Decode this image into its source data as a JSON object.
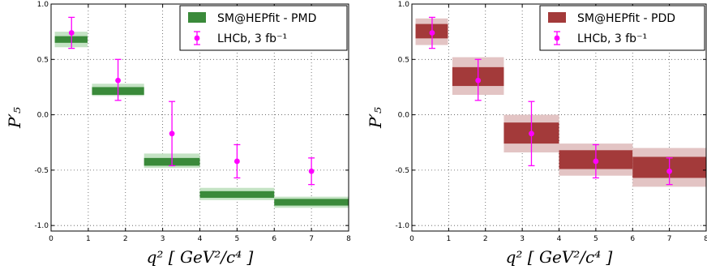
{
  "chart_data": [
    {
      "type": "error-bar-with-bands",
      "title": "",
      "xlabel": "q² [ GeV²/c⁴ ]",
      "ylabel": "P′₅",
      "xlim": [
        0,
        8
      ],
      "ylim": [
        -1.05,
        1.0
      ],
      "xticks": [
        "0",
        "1",
        "2",
        "3",
        "4",
        "5",
        "6",
        "7",
        "8"
      ],
      "yticks": [
        "1.0",
        "0.5",
        "0.0",
        "-0.5",
        "-1.0"
      ],
      "grid": true,
      "legend_position": "top-right",
      "series": [
        {
          "name": "SM@HEPfit - PMD",
          "kind": "bands",
          "color_outer": "#c4e3c4",
          "color_inner": "#3a8a3a",
          "bins": [
            {
              "x0": 0.1,
              "x1": 0.98,
              "outer": [
                0.61,
                0.75
              ],
              "inner": [
                0.65,
                0.71
              ]
            },
            {
              "x0": 1.1,
              "x1": 2.5,
              "outer": [
                0.17,
                0.28
              ],
              "inner": [
                0.18,
                0.25
              ]
            },
            {
              "x0": 2.5,
              "x1": 4.0,
              "outer": [
                -0.48,
                -0.35
              ],
              "inner": [
                -0.46,
                -0.39
              ]
            },
            {
              "x0": 4.0,
              "x1": 6.0,
              "outer": [
                -0.77,
                -0.66
              ],
              "inner": [
                -0.75,
                -0.69
              ]
            },
            {
              "x0": 6.0,
              "x1": 8.0,
              "outer": [
                -0.84,
                -0.74
              ],
              "inner": [
                -0.82,
                -0.76
              ]
            }
          ]
        },
        {
          "name": "LHCb, 3 fb⁻¹",
          "kind": "points",
          "color": "#ff00ff",
          "points": [
            {
              "x": 0.55,
              "y": 0.74,
              "ylo": 0.6,
              "yhi": 0.88
            },
            {
              "x": 1.8,
              "y": 0.31,
              "ylo": 0.13,
              "yhi": 0.5
            },
            {
              "x": 3.25,
              "y": -0.17,
              "ylo": -0.46,
              "yhi": 0.12
            },
            {
              "x": 5.0,
              "y": -0.42,
              "ylo": -0.57,
              "yhi": -0.27
            },
            {
              "x": 7.0,
              "y": -0.51,
              "ylo": -0.63,
              "yhi": -0.39
            }
          ]
        }
      ]
    },
    {
      "type": "error-bar-with-bands",
      "title": "",
      "xlabel": "q² [ GeV²/c⁴ ]",
      "ylabel": "P′₅",
      "xlim": [
        0,
        8
      ],
      "ylim": [
        -1.05,
        1.0
      ],
      "xticks": [
        "0",
        "1",
        "2",
        "3",
        "4",
        "5",
        "6",
        "7",
        "8"
      ],
      "yticks": [
        "1.0",
        "0.5",
        "0.0",
        "-0.5",
        "-1.0"
      ],
      "grid": true,
      "legend_position": "top-right",
      "series": [
        {
          "name": "SM@HEPfit - PDD",
          "kind": "bands",
          "color_outer": "#e3c4c4",
          "color_inner": "#a33a3a",
          "bins": [
            {
              "x0": 0.1,
              "x1": 0.98,
              "outer": [
                0.63,
                0.87
              ],
              "inner": [
                0.69,
                0.82
              ]
            },
            {
              "x0": 1.1,
              "x1": 2.5,
              "outer": [
                0.18,
                0.52
              ],
              "inner": [
                0.26,
                0.43
              ]
            },
            {
              "x0": 2.5,
              "x1": 4.0,
              "outer": [
                -0.34,
                0.0
              ],
              "inner": [
                -0.26,
                -0.07
              ]
            },
            {
              "x0": 4.0,
              "x1": 6.0,
              "outer": [
                -0.55,
                -0.26
              ],
              "inner": [
                -0.49,
                -0.32
              ]
            },
            {
              "x0": 6.0,
              "x1": 8.0,
              "outer": [
                -0.65,
                -0.3
              ],
              "inner": [
                -0.57,
                -0.38
              ]
            }
          ]
        },
        {
          "name": "LHCb, 3 fb⁻¹",
          "kind": "points",
          "color": "#ff00ff",
          "points": [
            {
              "x": 0.55,
              "y": 0.74,
              "ylo": 0.6,
              "yhi": 0.88
            },
            {
              "x": 1.8,
              "y": 0.31,
              "ylo": 0.13,
              "yhi": 0.5
            },
            {
              "x": 3.25,
              "y": -0.17,
              "ylo": -0.46,
              "yhi": 0.12
            },
            {
              "x": 5.0,
              "y": -0.42,
              "ylo": -0.57,
              "yhi": -0.27
            },
            {
              "x": 7.0,
              "y": -0.51,
              "ylo": -0.63,
              "yhi": -0.39
            }
          ]
        }
      ]
    }
  ]
}
